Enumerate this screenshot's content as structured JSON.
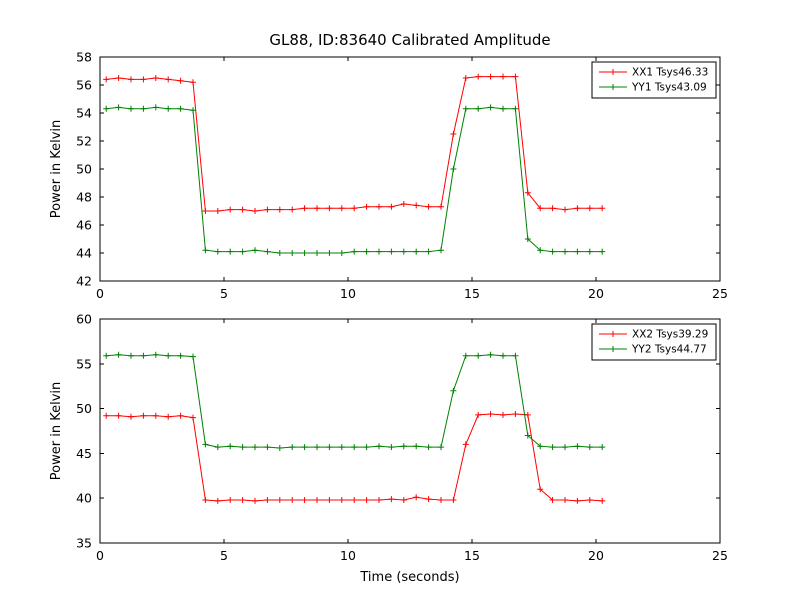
{
  "figure": {
    "background": "#ffffff",
    "frame_color": "#000000",
    "text_color": "#000000"
  },
  "chart_data": [
    {
      "type": "line",
      "title": "GL88, ID:83640 Calibrated Amplitude",
      "xlabel": "",
      "ylabel": "Power in Kelvin",
      "xlim": [
        0,
        25
      ],
      "ylim": [
        42,
        58
      ],
      "xticks": [
        0,
        5,
        10,
        15,
        20,
        25
      ],
      "yticks": [
        42,
        44,
        46,
        48,
        50,
        52,
        54,
        56,
        58
      ],
      "legend_position": "upper right",
      "marker": "+",
      "grid": false,
      "x": [
        0.25,
        0.75,
        1.25,
        1.75,
        2.25,
        2.75,
        3.25,
        3.75,
        4.25,
        4.75,
        5.25,
        5.75,
        6.25,
        6.75,
        7.25,
        7.75,
        8.25,
        8.75,
        9.25,
        9.75,
        10.25,
        10.75,
        11.25,
        11.75,
        12.25,
        12.75,
        13.25,
        13.75,
        14.25,
        14.75,
        15.25,
        15.75,
        16.25,
        16.75,
        17.25,
        17.75,
        18.25,
        18.75,
        19.25,
        19.75,
        20.25
      ],
      "series": [
        {
          "name": "XX1 Tsys46.33",
          "color": "#ff0000",
          "values": [
            56.4,
            56.5,
            56.4,
            56.4,
            56.5,
            56.4,
            56.3,
            56.2,
            47.0,
            47.0,
            47.1,
            47.1,
            47.0,
            47.1,
            47.1,
            47.1,
            47.2,
            47.2,
            47.2,
            47.2,
            47.2,
            47.3,
            47.3,
            47.3,
            47.5,
            47.4,
            47.3,
            47.3,
            52.5,
            56.5,
            56.6,
            56.6,
            56.6,
            56.6,
            48.3,
            47.2,
            47.2,
            47.1,
            47.2,
            47.2,
            47.2
          ]
        },
        {
          "name": "YY1 Tsys43.09",
          "color": "#008000",
          "values": [
            54.3,
            54.4,
            54.3,
            54.3,
            54.4,
            54.3,
            54.3,
            54.2,
            44.2,
            44.1,
            44.1,
            44.1,
            44.2,
            44.1,
            44.0,
            44.0,
            44.0,
            44.0,
            44.0,
            44.0,
            44.1,
            44.1,
            44.1,
            44.1,
            44.1,
            44.1,
            44.1,
            44.2,
            50.0,
            54.3,
            54.3,
            54.4,
            54.3,
            54.3,
            45.0,
            44.2,
            44.1,
            44.1,
            44.1,
            44.1,
            44.1
          ]
        }
      ]
    },
    {
      "type": "line",
      "title": "",
      "xlabel": "Time (seconds)",
      "ylabel": "Power in Kelvin",
      "xlim": [
        0,
        25
      ],
      "ylim": [
        35,
        60
      ],
      "xticks": [
        0,
        5,
        10,
        15,
        20,
        25
      ],
      "yticks": [
        35,
        40,
        45,
        50,
        55,
        60
      ],
      "legend_position": "upper right",
      "marker": "+",
      "grid": false,
      "x": [
        0.25,
        0.75,
        1.25,
        1.75,
        2.25,
        2.75,
        3.25,
        3.75,
        4.25,
        4.75,
        5.25,
        5.75,
        6.25,
        6.75,
        7.25,
        7.75,
        8.25,
        8.75,
        9.25,
        9.75,
        10.25,
        10.75,
        11.25,
        11.75,
        12.25,
        12.75,
        13.25,
        13.75,
        14.25,
        14.75,
        15.25,
        15.75,
        16.25,
        16.75,
        17.25,
        17.75,
        18.25,
        18.75,
        19.25,
        19.75,
        20.25
      ],
      "series": [
        {
          "name": "XX2 Tsys39.29",
          "color": "#ff0000",
          "values": [
            49.2,
            49.2,
            49.1,
            49.2,
            49.2,
            49.1,
            49.2,
            49.0,
            39.8,
            39.7,
            39.8,
            39.8,
            39.7,
            39.8,
            39.8,
            39.8,
            39.8,
            39.8,
            39.8,
            39.8,
            39.8,
            39.8,
            39.8,
            39.9,
            39.8,
            40.1,
            39.9,
            39.8,
            39.8,
            46.0,
            49.3,
            49.4,
            49.3,
            49.4,
            49.3,
            41.0,
            39.8,
            39.8,
            39.7,
            39.8,
            39.7
          ],
          "note": ""
        },
        {
          "name": "YY2 Tsys44.77",
          "color": "#008000",
          "values": [
            55.9,
            56.0,
            55.9,
            55.9,
            56.0,
            55.9,
            55.9,
            55.8,
            46.0,
            45.7,
            45.8,
            45.7,
            45.7,
            45.7,
            45.6,
            45.7,
            45.7,
            45.7,
            45.7,
            45.7,
            45.7,
            45.7,
            45.8,
            45.7,
            45.8,
            45.8,
            45.7,
            45.7,
            52.0,
            55.9,
            55.9,
            56.0,
            55.9,
            55.9,
            47.0,
            45.8,
            45.7,
            45.7,
            45.8,
            45.7,
            45.7
          ]
        }
      ]
    }
  ]
}
